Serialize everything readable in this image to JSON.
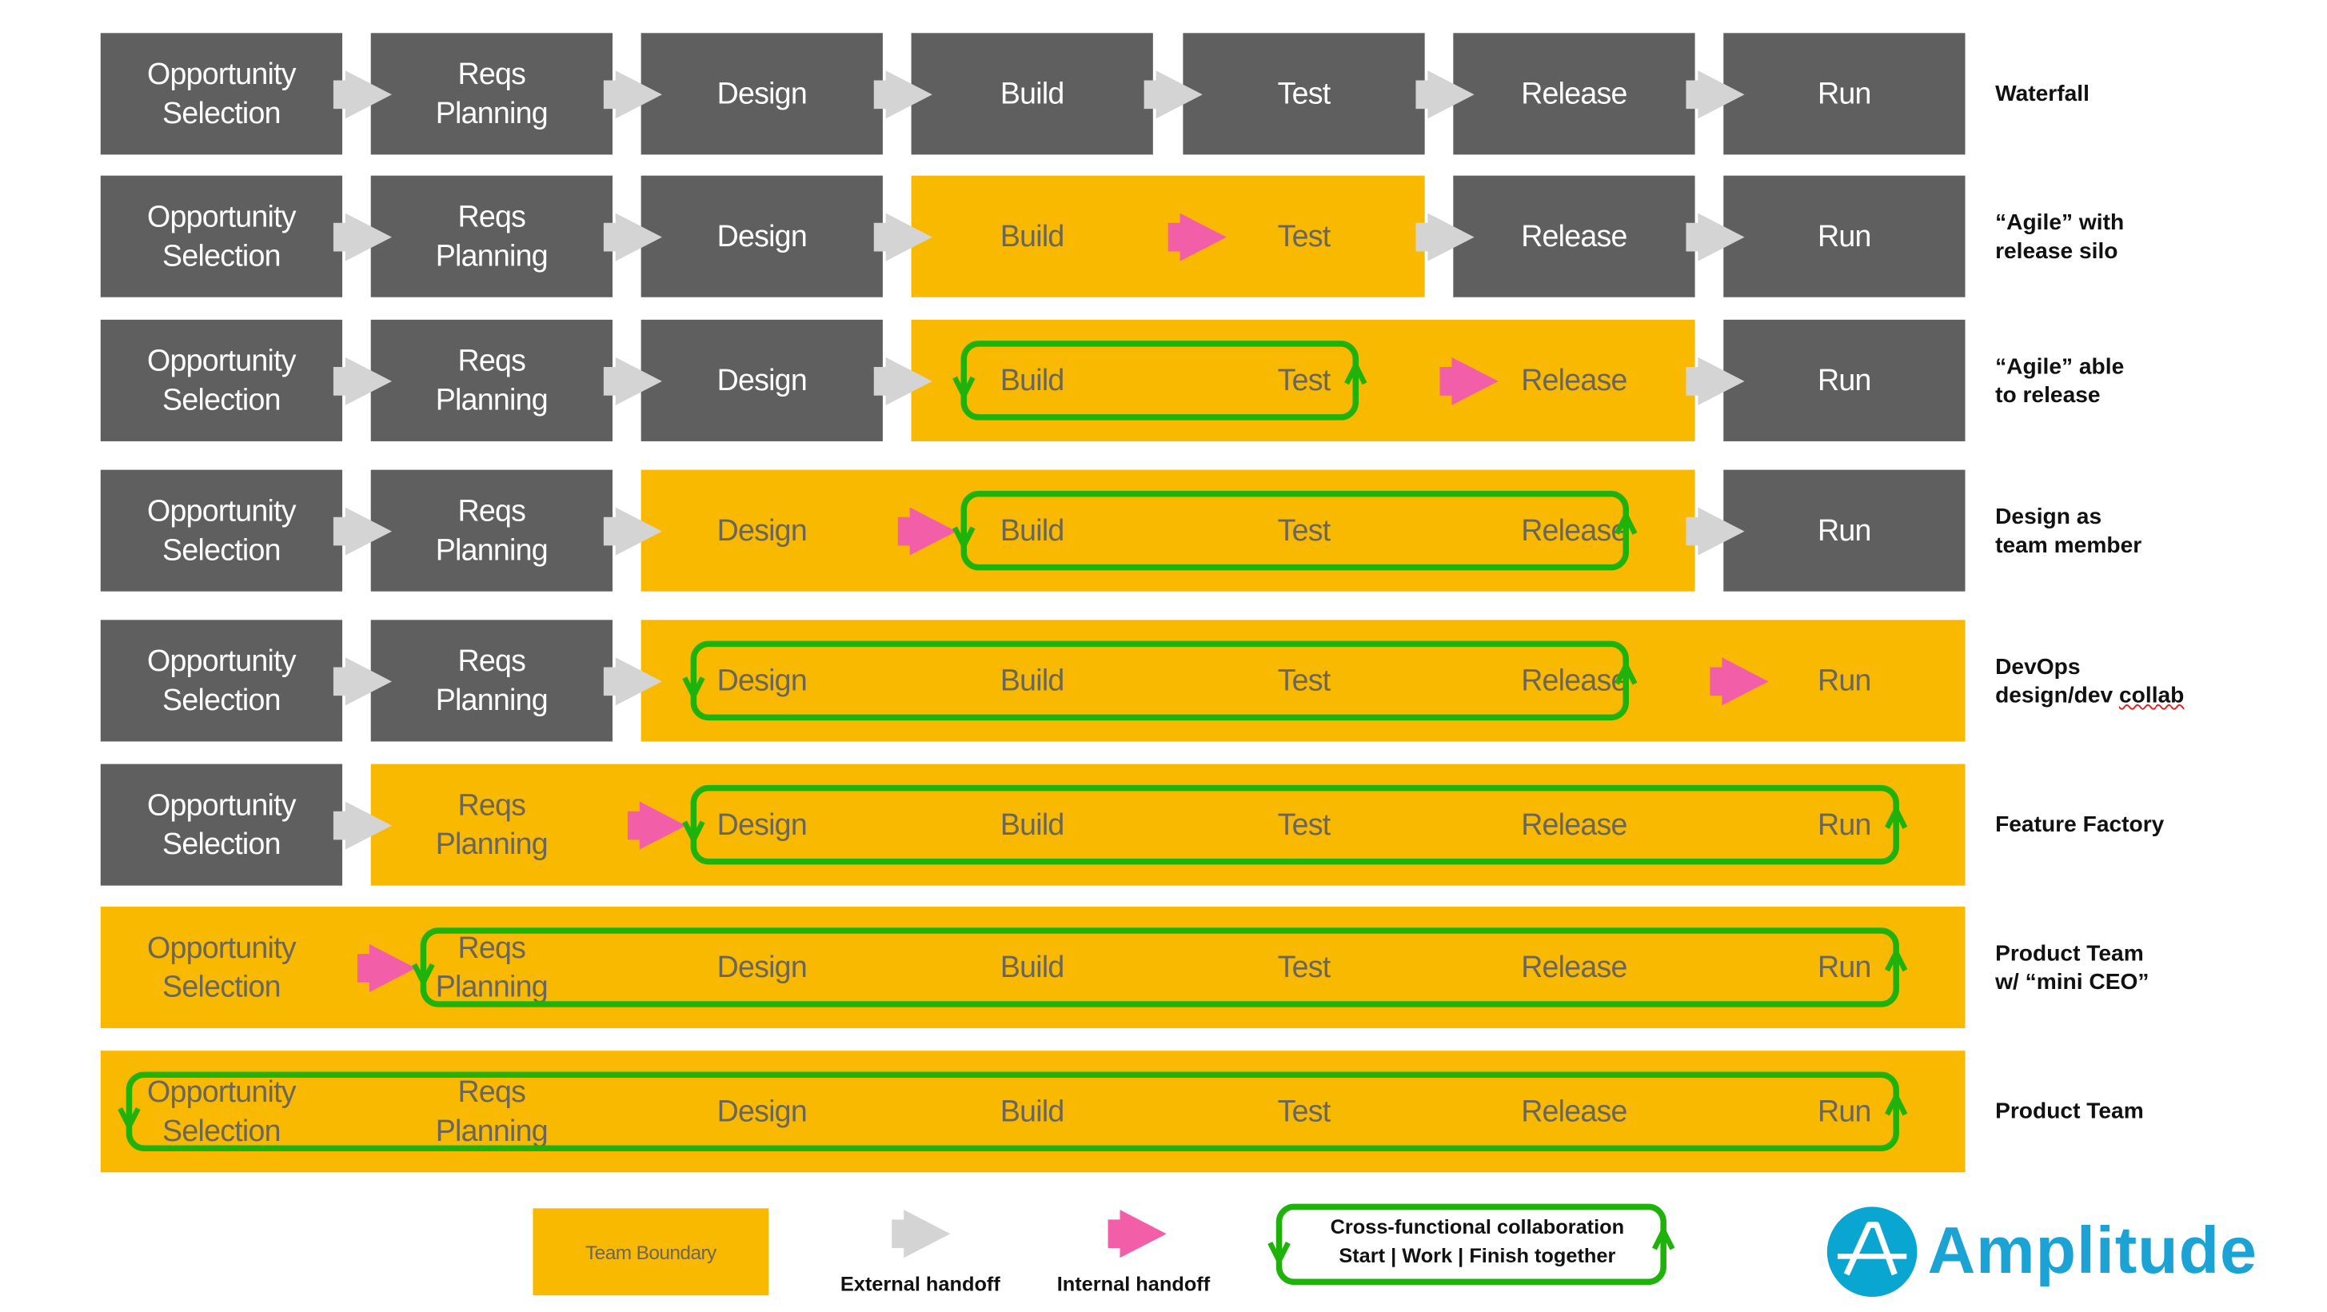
{
  "colors": {
    "silo": "#5f5f5f",
    "team_boundary": "#f9b900",
    "external_handoff": "#d4d4d4",
    "internal_handoff": "#f25fa8",
    "collaboration": "#1fb20a",
    "brand": "#1aa3d4"
  },
  "rows": [
    {
      "label": "Waterfall",
      "stages": [
        "Opportunity\nSelection",
        "Reqs\nPlanning",
        "Design",
        "Build",
        "Test",
        "Release",
        "Run"
      ],
      "team": null,
      "collab": null
    },
    {
      "label": "“Agile” with\nrelease silo",
      "stages": [
        "Opportunity\nSelection",
        "Reqs\nPlanning",
        "Design",
        "Build",
        "Test",
        "Release",
        "Run"
      ],
      "team": [
        3,
        4
      ],
      "collab": null
    },
    {
      "label": "“Agile” able\nto release",
      "stages": [
        "Opportunity\nSelection",
        "Reqs\nPlanning",
        "Design",
        "Build",
        "Test",
        "Release",
        "Run"
      ],
      "team": [
        3,
        5
      ],
      "collab": [
        3,
        4
      ]
    },
    {
      "label": "Design as\nteam member",
      "stages": [
        "Opportunity\nSelection",
        "Reqs\nPlanning",
        "Design",
        "Build",
        "Test",
        "Release",
        "Run"
      ],
      "team": [
        2,
        5
      ],
      "collab": [
        3,
        5
      ]
    },
    {
      "label_line1": "DevOps",
      "label_line2a": "design/dev ",
      "label_line2b": "collab",
      "stages": [
        "Opportunity\nSelection",
        "Reqs\nPlanning",
        "Design",
        "Build",
        "Test",
        "Release",
        "Run"
      ],
      "team": [
        2,
        6
      ],
      "collab": [
        2,
        5
      ]
    },
    {
      "label": "Feature Factory",
      "stages": [
        "Opportunity\nSelection",
        "Reqs\nPlanning",
        "Design",
        "Build",
        "Test",
        "Release",
        "Run"
      ],
      "team": [
        1,
        6
      ],
      "collab": [
        2,
        6
      ]
    },
    {
      "label": "Product Team\nw/ “mini CEO”",
      "stages": [
        "Opportunity\nSelection",
        "Reqs\nPlanning",
        "Design",
        "Build",
        "Test",
        "Release",
        "Run"
      ],
      "team": [
        0,
        6
      ],
      "collab": [
        1,
        6
      ]
    },
    {
      "label": "Product Team",
      "stages": [
        "Opportunity\nSelection",
        "Reqs\nPlanning",
        "Design",
        "Build",
        "Test",
        "Release",
        "Run"
      ],
      "team": [
        0,
        6
      ],
      "collab": [
        0,
        6
      ]
    }
  ],
  "legend": {
    "team_boundary": "Team Boundary",
    "external_handoff": "External handoff",
    "internal_handoff": "Internal handoff",
    "collab_line1": "Cross-functional collaboration",
    "collab_line2": "Start | Work | Finish together"
  },
  "logo": {
    "text": "Amplitude",
    "icon": "amplitude-logo-icon"
  }
}
